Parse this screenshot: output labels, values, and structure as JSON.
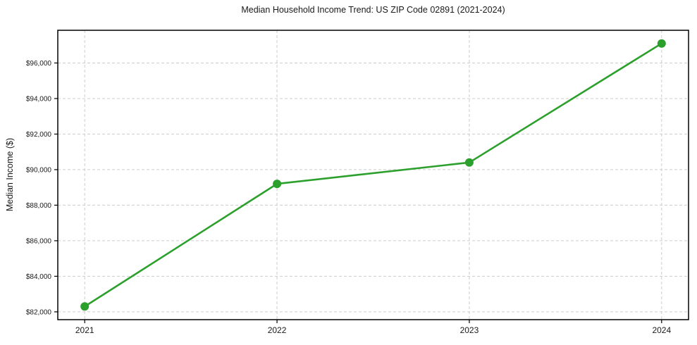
{
  "chart_data": {
    "type": "line",
    "title": "Median Household Income Trend: US ZIP Code 02891 (2021-2024)",
    "xlabel": "",
    "ylabel": "Median Income ($)",
    "x": [
      2021,
      2022,
      2023,
      2024
    ],
    "x_tick_labels": [
      "2021",
      "2022",
      "2023",
      "2024"
    ],
    "series": [
      {
        "name": "Median Household Income",
        "values": [
          82300,
          89200,
          90400,
          97100
        ],
        "value_labels": [
          "$82,300",
          "$89,200",
          "$90,400",
          "$97,100"
        ]
      }
    ],
    "xlim": [
      2020.86,
      2024.14
    ],
    "ylim": [
      81560,
      97840
    ],
    "yticks": [
      82000,
      84000,
      86000,
      88000,
      90000,
      92000,
      94000,
      96000
    ],
    "ytick_labels": [
      "$82,000",
      "$84,000",
      "$86,000",
      "$88,000",
      "$90,000",
      "$92,000",
      "$94,000",
      "$96,000"
    ],
    "grid": true,
    "legend": "none",
    "line_color": "#2ca02c",
    "marker_color": "#2ca02c",
    "grid_color": "#cccccc",
    "background_color": "#ffffff"
  }
}
